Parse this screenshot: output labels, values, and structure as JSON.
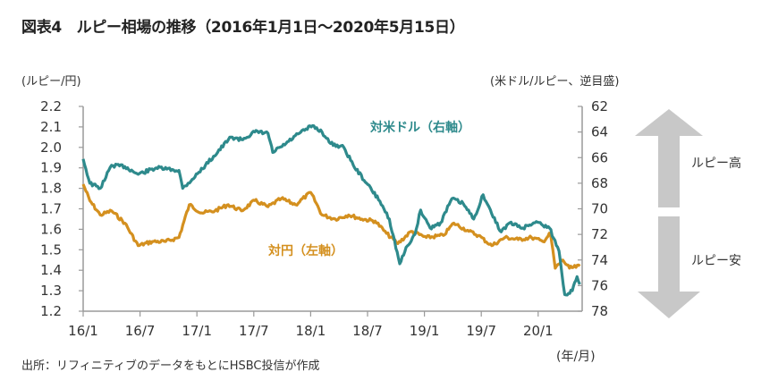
{
  "title": "図表4　ルピー相場の推移（2016年1月1日～2020年5月15日）",
  "source": "出所：リフィニティブのデータをもとにHSBC投信が作成",
  "arrows": {
    "up_label": "ルピー高",
    "down_label": "ルピー安"
  },
  "colors": {
    "usd": "#2e8a8c",
    "jpy": "#d4901f",
    "axis": "#9a9a9a",
    "arrow": "#c8c8c8"
  },
  "chart_data": {
    "type": "line",
    "title": "ルピー相場の推移（2016年1月1日～2020年5月15日）",
    "xlabel": "(年/月)",
    "ylabel_left": "(ルピー/円)",
    "ylabel_right": "(米ドル/ルピー、逆目盛)",
    "x_unit": "months since 2016/1",
    "xlim": [
      0,
      52.5
    ],
    "x_ticks": [
      0,
      6,
      12,
      18,
      24,
      30,
      36,
      42,
      48
    ],
    "x_tick_labels": [
      "16/1",
      "16/7",
      "17/1",
      "17/7",
      "18/1",
      "18/7",
      "19/1",
      "19/7",
      "20/1"
    ],
    "ylim_left": [
      1.2,
      2.2
    ],
    "y_ticks_left": [
      "2.2",
      "2.1",
      "2.0",
      "1.9",
      "1.8",
      "1.7",
      "1.6",
      "1.5",
      "1.4",
      "1.3",
      "1.2"
    ],
    "ylim_right": [
      62,
      78
    ],
    "right_inverted": true,
    "y_ticks_right": [
      "62",
      "64",
      "66",
      "68",
      "70",
      "72",
      "74",
      "76",
      "78"
    ],
    "grid": false,
    "series": [
      {
        "name": "対米ドル（右軸）",
        "axis": "right",
        "x": [
          0,
          0.7,
          1.8,
          3.0,
          4.4,
          5.8,
          7.7,
          10.1,
          10.5,
          11.5,
          12.9,
          15.6,
          16.7,
          18.1,
          19.5,
          20.0,
          21.4,
          22.8,
          24.2,
          25.2,
          26.1,
          27.5,
          28.5,
          29.9,
          31.3,
          32.3,
          33.4,
          34.2,
          35.0,
          35.6,
          36.6,
          37.7,
          38.9,
          40.1,
          41.2,
          42.2,
          43.1,
          44.1,
          45.0,
          46.4,
          47.8,
          49.2,
          50.2,
          50.8,
          51.6,
          52.1,
          52.4
        ],
        "values": [
          66.1,
          68.0,
          68.4,
          66.6,
          66.7,
          67.3,
          66.8,
          67.0,
          68.4,
          67.7,
          66.6,
          64.4,
          64.6,
          64.0,
          64.1,
          65.6,
          64.9,
          64.1,
          63.5,
          64.0,
          64.9,
          65.2,
          66.6,
          68.0,
          69.4,
          70.8,
          74.3,
          72.9,
          72.0,
          70.1,
          71.5,
          71.1,
          69.2,
          69.6,
          70.8,
          68.9,
          70.4,
          71.8,
          71.1,
          71.5,
          71.0,
          71.5,
          73.3,
          76.7,
          76.4,
          75.3,
          75.9
        ]
      },
      {
        "name": "対円（左軸）",
        "axis": "left",
        "x": [
          0,
          0.7,
          1.8,
          3.0,
          4.4,
          5.8,
          7.3,
          8.7,
          10.1,
          11.2,
          12.5,
          13.9,
          15.3,
          16.7,
          18.1,
          19.5,
          20.9,
          22.4,
          24.0,
          25.2,
          26.6,
          28.0,
          29.4,
          30.8,
          32.0,
          33.2,
          34.6,
          36.2,
          38.0,
          39.1,
          40.7,
          41.7,
          43.1,
          44.5,
          45.9,
          47.3,
          48.5,
          49.3,
          49.8,
          50.6,
          51.3,
          52.4
        ],
        "values": [
          1.82,
          1.74,
          1.67,
          1.69,
          1.63,
          1.52,
          1.54,
          1.54,
          1.56,
          1.72,
          1.68,
          1.69,
          1.72,
          1.69,
          1.74,
          1.71,
          1.75,
          1.72,
          1.78,
          1.67,
          1.65,
          1.67,
          1.65,
          1.64,
          1.58,
          1.53,
          1.59,
          1.56,
          1.57,
          1.63,
          1.59,
          1.57,
          1.52,
          1.56,
          1.55,
          1.56,
          1.54,
          1.58,
          1.41,
          1.45,
          1.41,
          1.42
        ]
      }
    ],
    "annotations": [
      "対米ドル（右軸）",
      "対円（左軸）"
    ]
  }
}
